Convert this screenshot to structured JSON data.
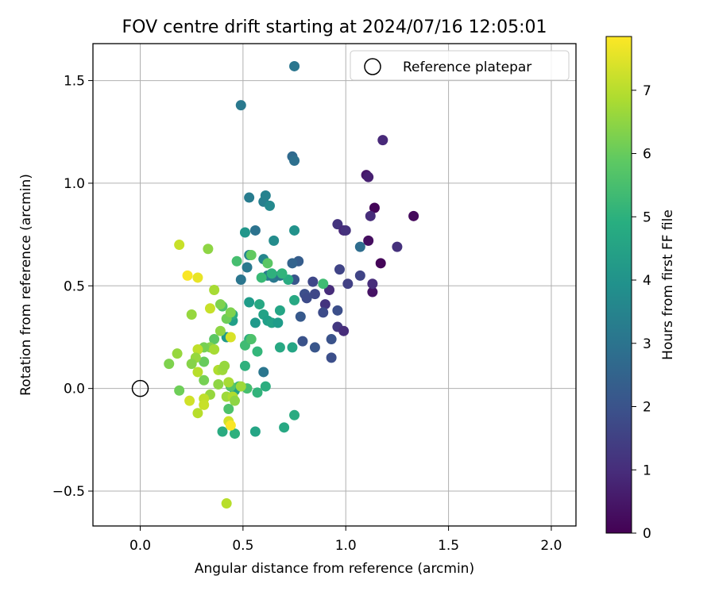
{
  "chart_data": {
    "type": "scatter",
    "title": "FOV centre drift starting at 2024/07/16 12:05:01",
    "xlabel": "Angular distance from reference (arcmin)",
    "ylabel": "Rotation from reference (arcmin)",
    "xlim": [
      -0.23,
      2.12
    ],
    "ylim": [
      -0.67,
      1.68
    ],
    "xticks": [
      0.0,
      0.5,
      1.0,
      1.5,
      2.0
    ],
    "xtick_labels": [
      "0.0",
      "0.5",
      "1.0",
      "1.5",
      "2.0"
    ],
    "yticks": [
      -0.5,
      0.0,
      0.5,
      1.0,
      1.5
    ],
    "ytick_labels": [
      "−0.5",
      "0.0",
      "0.5",
      "1.0",
      "1.5"
    ],
    "grid": true,
    "legend": {
      "position": "top-right",
      "entries": [
        {
          "label": "Reference platepar",
          "marker": "open-circle",
          "x": 0.0,
          "y": 0.0
        }
      ]
    },
    "colorbar": {
      "label": "Hours from first FF file",
      "colormap": "viridis",
      "range": [
        0,
        7.85
      ],
      "ticks": [
        0,
        1,
        2,
        3,
        4,
        5,
        6,
        7
      ],
      "tick_labels": [
        "0",
        "1",
        "2",
        "3",
        "4",
        "5",
        "6",
        "7"
      ]
    },
    "points": [
      {
        "x": 1.14,
        "y": 0.88,
        "c": 0.1
      },
      {
        "x": 1.33,
        "y": 0.84,
        "c": 0.2
      },
      {
        "x": 1.11,
        "y": 0.72,
        "c": 0.3
      },
      {
        "x": 1.17,
        "y": 0.61,
        "c": 0.1
      },
      {
        "x": 1.13,
        "y": 0.47,
        "c": 0.4
      },
      {
        "x": 1.1,
        "y": 1.04,
        "c": 0.5
      },
      {
        "x": 1.11,
        "y": 1.03,
        "c": 0.7
      },
      {
        "x": 1.18,
        "y": 1.21,
        "c": 0.9
      },
      {
        "x": 1.12,
        "y": 0.84,
        "c": 1.0
      },
      {
        "x": 1.25,
        "y": 0.69,
        "c": 1.1
      },
      {
        "x": 1.13,
        "y": 0.51,
        "c": 1.0
      },
      {
        "x": 0.96,
        "y": 0.8,
        "c": 1.2
      },
      {
        "x": 0.99,
        "y": 0.77,
        "c": 0.9
      },
      {
        "x": 1.0,
        "y": 0.77,
        "c": 1.1
      },
      {
        "x": 0.92,
        "y": 0.48,
        "c": 1.0
      },
      {
        "x": 0.9,
        "y": 0.41,
        "c": 1.2
      },
      {
        "x": 0.96,
        "y": 0.3,
        "c": 1.3
      },
      {
        "x": 0.99,
        "y": 0.28,
        "c": 1.0
      },
      {
        "x": 1.01,
        "y": 0.51,
        "c": 1.5
      },
      {
        "x": 0.97,
        "y": 0.58,
        "c": 1.6
      },
      {
        "x": 1.07,
        "y": 0.55,
        "c": 1.6
      },
      {
        "x": 0.84,
        "y": 0.52,
        "c": 1.7
      },
      {
        "x": 0.85,
        "y": 0.46,
        "c": 1.7
      },
      {
        "x": 0.8,
        "y": 0.46,
        "c": 1.9
      },
      {
        "x": 0.81,
        "y": 0.44,
        "c": 1.8
      },
      {
        "x": 0.89,
        "y": 0.37,
        "c": 1.8
      },
      {
        "x": 0.96,
        "y": 0.38,
        "c": 1.9
      },
      {
        "x": 0.93,
        "y": 0.24,
        "c": 2.0
      },
      {
        "x": 0.93,
        "y": 0.15,
        "c": 1.9
      },
      {
        "x": 0.85,
        "y": 0.2,
        "c": 2.1
      },
      {
        "x": 0.79,
        "y": 0.23,
        "c": 2.0
      },
      {
        "x": 0.78,
        "y": 0.35,
        "c": 2.2
      },
      {
        "x": 0.77,
        "y": 0.62,
        "c": 2.3
      },
      {
        "x": 0.75,
        "y": 0.53,
        "c": 2.1
      },
      {
        "x": 0.74,
        "y": 0.61,
        "c": 2.5
      },
      {
        "x": 1.07,
        "y": 0.69,
        "c": 2.8
      },
      {
        "x": 0.74,
        "y": 1.13,
        "c": 2.7
      },
      {
        "x": 0.75,
        "y": 1.11,
        "c": 2.9
      },
      {
        "x": 0.75,
        "y": 1.57,
        "c": 3.1
      },
      {
        "x": 0.49,
        "y": 1.38,
        "c": 3.2
      },
      {
        "x": 0.53,
        "y": 0.93,
        "c": 3.3
      },
      {
        "x": 0.56,
        "y": 0.77,
        "c": 3.0
      },
      {
        "x": 0.6,
        "y": 0.91,
        "c": 3.4
      },
      {
        "x": 0.61,
        "y": 0.94,
        "c": 3.5
      },
      {
        "x": 0.63,
        "y": 0.89,
        "c": 3.7
      },
      {
        "x": 0.49,
        "y": 0.53,
        "c": 3.1
      },
      {
        "x": 0.52,
        "y": 0.59,
        "c": 3.2
      },
      {
        "x": 0.6,
        "y": 0.63,
        "c": 3.6
      },
      {
        "x": 0.62,
        "y": 0.55,
        "c": 3.3
      },
      {
        "x": 0.65,
        "y": 0.54,
        "c": 3.2
      },
      {
        "x": 0.68,
        "y": 0.55,
        "c": 3.0
      },
      {
        "x": 0.6,
        "y": 0.08,
        "c": 3.1
      },
      {
        "x": 0.65,
        "y": 0.72,
        "c": 3.8
      },
      {
        "x": 0.75,
        "y": 0.77,
        "c": 4.0
      },
      {
        "x": 0.53,
        "y": 0.65,
        "c": 3.6
      },
      {
        "x": 0.53,
        "y": 0.42,
        "c": 4.3
      },
      {
        "x": 0.56,
        "y": 0.32,
        "c": 4.2
      },
      {
        "x": 0.58,
        "y": 0.41,
        "c": 4.7
      },
      {
        "x": 0.6,
        "y": 0.36,
        "c": 4.5
      },
      {
        "x": 0.62,
        "y": 0.33,
        "c": 4.4
      },
      {
        "x": 0.64,
        "y": 0.32,
        "c": 4.5
      },
      {
        "x": 0.67,
        "y": 0.32,
        "c": 4.3
      },
      {
        "x": 0.68,
        "y": 0.38,
        "c": 4.6
      },
      {
        "x": 0.72,
        "y": 0.53,
        "c": 4.8
      },
      {
        "x": 0.75,
        "y": 0.43,
        "c": 4.7
      },
      {
        "x": 0.64,
        "y": 0.56,
        "c": 5.0
      },
      {
        "x": 0.69,
        "y": 0.56,
        "c": 5.1
      },
      {
        "x": 0.59,
        "y": 0.54,
        "c": 5.3
      },
      {
        "x": 0.62,
        "y": 0.61,
        "c": 5.8
      },
      {
        "x": 0.47,
        "y": 0.62,
        "c": 5.5
      },
      {
        "x": 0.54,
        "y": 0.65,
        "c": 5.9
      },
      {
        "x": 0.51,
        "y": 0.76,
        "c": 4.1
      },
      {
        "x": 0.53,
        "y": 0.24,
        "c": 4.9
      },
      {
        "x": 0.45,
        "y": 0.33,
        "c": 4.4
      },
      {
        "x": 0.45,
        "y": 0.36,
        "c": 4.8
      },
      {
        "x": 0.51,
        "y": 0.21,
        "c": 5.4
      },
      {
        "x": 0.54,
        "y": 0.24,
        "c": 5.6
      },
      {
        "x": 0.57,
        "y": 0.18,
        "c": 5.2
      },
      {
        "x": 0.51,
        "y": 0.11,
        "c": 5.0
      },
      {
        "x": 0.48,
        "y": 0.01,
        "c": 5.3
      },
      {
        "x": 0.52,
        "y": 0.0,
        "c": 5.5
      },
      {
        "x": 0.57,
        "y": -0.02,
        "c": 5.1
      },
      {
        "x": 0.61,
        "y": 0.01,
        "c": 4.9
      },
      {
        "x": 0.68,
        "y": 0.2,
        "c": 4.7
      },
      {
        "x": 0.74,
        "y": 0.2,
        "c": 4.6
      },
      {
        "x": 0.75,
        "y": -0.13,
        "c": 4.8
      },
      {
        "x": 0.7,
        "y": -0.19,
        "c": 4.7
      },
      {
        "x": 0.56,
        "y": -0.21,
        "c": 4.6
      },
      {
        "x": 0.46,
        "y": -0.22,
        "c": 5.0
      },
      {
        "x": 0.4,
        "y": -0.21,
        "c": 4.8
      },
      {
        "x": 0.89,
        "y": 0.51,
        "c": 5.4
      },
      {
        "x": 0.46,
        "y": -0.01,
        "c": 4.5
      },
      {
        "x": 0.44,
        "y": 0.01,
        "c": 5.7
      },
      {
        "x": 0.43,
        "y": -0.1,
        "c": 5.6
      },
      {
        "x": 0.42,
        "y": 0.25,
        "c": 4.2
      },
      {
        "x": 0.4,
        "y": 0.4,
        "c": 5.6
      },
      {
        "x": 0.42,
        "y": 0.34,
        "c": 6.1
      },
      {
        "x": 0.44,
        "y": 0.37,
        "c": 6.3
      },
      {
        "x": 0.39,
        "y": 0.28,
        "c": 6.5
      },
      {
        "x": 0.36,
        "y": 0.24,
        "c": 5.8
      },
      {
        "x": 0.34,
        "y": 0.2,
        "c": 6.4
      },
      {
        "x": 0.36,
        "y": 0.19,
        "c": 6.8
      },
      {
        "x": 0.31,
        "y": 0.2,
        "c": 6.2
      },
      {
        "x": 0.31,
        "y": 0.13,
        "c": 6.0
      },
      {
        "x": 0.28,
        "y": 0.19,
        "c": 7.1
      },
      {
        "x": 0.27,
        "y": 0.15,
        "c": 6.6
      },
      {
        "x": 0.25,
        "y": 0.12,
        "c": 6.4
      },
      {
        "x": 0.28,
        "y": 0.08,
        "c": 7.0
      },
      {
        "x": 0.31,
        "y": 0.04,
        "c": 6.2
      },
      {
        "x": 0.38,
        "y": 0.02,
        "c": 6.5
      },
      {
        "x": 0.38,
        "y": 0.09,
        "c": 6.9
      },
      {
        "x": 0.4,
        "y": 0.09,
        "c": 6.7
      },
      {
        "x": 0.41,
        "y": 0.11,
        "c": 6.6
      },
      {
        "x": 0.43,
        "y": 0.03,
        "c": 6.8
      },
      {
        "x": 0.42,
        "y": -0.04,
        "c": 6.7
      },
      {
        "x": 0.45,
        "y": -0.04,
        "c": 6.9
      },
      {
        "x": 0.46,
        "y": -0.06,
        "c": 6.5
      },
      {
        "x": 0.49,
        "y": 0.01,
        "c": 6.7
      },
      {
        "x": 0.34,
        "y": -0.03,
        "c": 6.6
      },
      {
        "x": 0.31,
        "y": -0.05,
        "c": 7.1
      },
      {
        "x": 0.31,
        "y": -0.08,
        "c": 7.2
      },
      {
        "x": 0.28,
        "y": -0.12,
        "c": 7.0
      },
      {
        "x": 0.24,
        "y": -0.06,
        "c": 7.3
      },
      {
        "x": 0.19,
        "y": -0.01,
        "c": 6.1
      },
      {
        "x": 0.14,
        "y": 0.12,
        "c": 6.3
      },
      {
        "x": 0.18,
        "y": 0.17,
        "c": 6.6
      },
      {
        "x": 0.25,
        "y": 0.36,
        "c": 6.6
      },
      {
        "x": 0.34,
        "y": 0.39,
        "c": 7.2
      },
      {
        "x": 0.39,
        "y": 0.41,
        "c": 6.3
      },
      {
        "x": 0.36,
        "y": 0.48,
        "c": 6.8
      },
      {
        "x": 0.33,
        "y": 0.68,
        "c": 6.5
      },
      {
        "x": 0.19,
        "y": 0.7,
        "c": 7.2
      },
      {
        "x": 0.23,
        "y": 0.55,
        "c": 7.8
      },
      {
        "x": 0.28,
        "y": 0.54,
        "c": 7.6
      },
      {
        "x": 0.44,
        "y": 0.25,
        "c": 7.4
      },
      {
        "x": 0.43,
        "y": -0.16,
        "c": 7.3
      },
      {
        "x": 0.44,
        "y": -0.18,
        "c": 7.8
      },
      {
        "x": 0.42,
        "y": -0.56,
        "c": 7.0
      }
    ]
  }
}
